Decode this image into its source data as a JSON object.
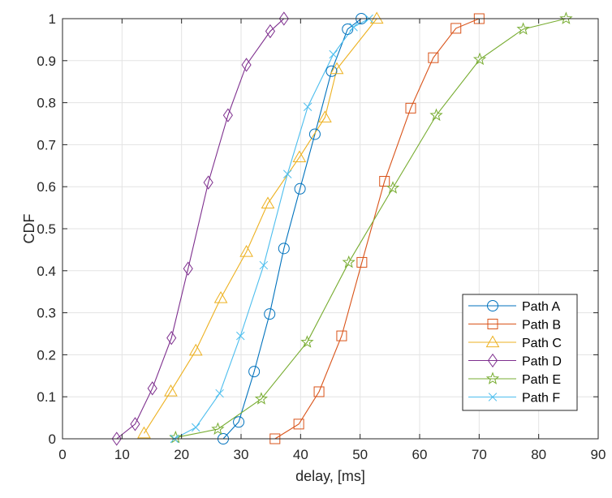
{
  "chart_data": {
    "type": "line",
    "title": "",
    "xlabel": "delay, [ms]",
    "ylabel": "CDF",
    "xlim": [
      0,
      90
    ],
    "ylim": [
      0,
      1
    ],
    "xticks": [
      0,
      10,
      20,
      30,
      40,
      50,
      60,
      70,
      80,
      90
    ],
    "yticks": [
      0,
      0.1,
      0.2,
      0.3,
      0.4,
      0.5,
      0.6,
      0.7,
      0.8,
      0.9,
      1
    ],
    "grid": true,
    "legend_position": "southeast",
    "series": [
      {
        "name": "Path A",
        "color": "#0072BD",
        "marker": "circle",
        "x": [
          27.0,
          29.6,
          32.2,
          34.8,
          37.2,
          39.9,
          42.4,
          45.2,
          47.9,
          50.2
        ],
        "y": [
          0.0,
          0.04,
          0.16,
          0.297,
          0.453,
          0.595,
          0.725,
          0.875,
          0.975,
          1.0
        ]
      },
      {
        "name": "Path B",
        "color": "#D95319",
        "marker": "square",
        "x": [
          35.7,
          39.7,
          43.1,
          46.9,
          50.3,
          54.1,
          58.5,
          62.3,
          66.1,
          70.0
        ],
        "y": [
          0.0,
          0.035,
          0.112,
          0.245,
          0.42,
          0.613,
          0.787,
          0.907,
          0.977,
          1.0
        ]
      },
      {
        "name": "Path C",
        "color": "#EDB120",
        "marker": "triangle",
        "x": [
          13.7,
          18.2,
          22.4,
          26.6,
          30.9,
          34.5,
          39.8,
          44.1,
          46.1,
          52.8
        ],
        "y": [
          0.013,
          0.113,
          0.21,
          0.335,
          0.445,
          0.56,
          0.67,
          0.765,
          0.88,
          1.0
        ]
      },
      {
        "name": "Path D",
        "color": "#7E2F8E",
        "marker": "diamond",
        "x": [
          9.1,
          12.2,
          15.1,
          18.3,
          21.1,
          24.5,
          27.8,
          30.9,
          34.9,
          37.2
        ],
        "y": [
          0.0,
          0.035,
          0.12,
          0.24,
          0.405,
          0.61,
          0.77,
          0.89,
          0.97,
          1.0
        ]
      },
      {
        "name": "Path E",
        "color": "#77AC30",
        "marker": "pentagram",
        "x": [
          19.0,
          26.1,
          33.4,
          41.1,
          48.1,
          55.5,
          62.8,
          70.1,
          77.4,
          84.6
        ],
        "y": [
          0.003,
          0.023,
          0.095,
          0.23,
          0.42,
          0.597,
          0.77,
          0.903,
          0.975,
          1.0
        ]
      },
      {
        "name": "Path F",
        "color": "#4DBEEE",
        "marker": "x",
        "x": [
          18.8,
          22.4,
          26.4,
          29.9,
          33.8,
          37.8,
          41.2,
          45.5,
          48.9,
          51.5
        ],
        "y": [
          0.0,
          0.027,
          0.108,
          0.245,
          0.413,
          0.63,
          0.79,
          0.915,
          0.98,
          1.0
        ]
      }
    ]
  }
}
